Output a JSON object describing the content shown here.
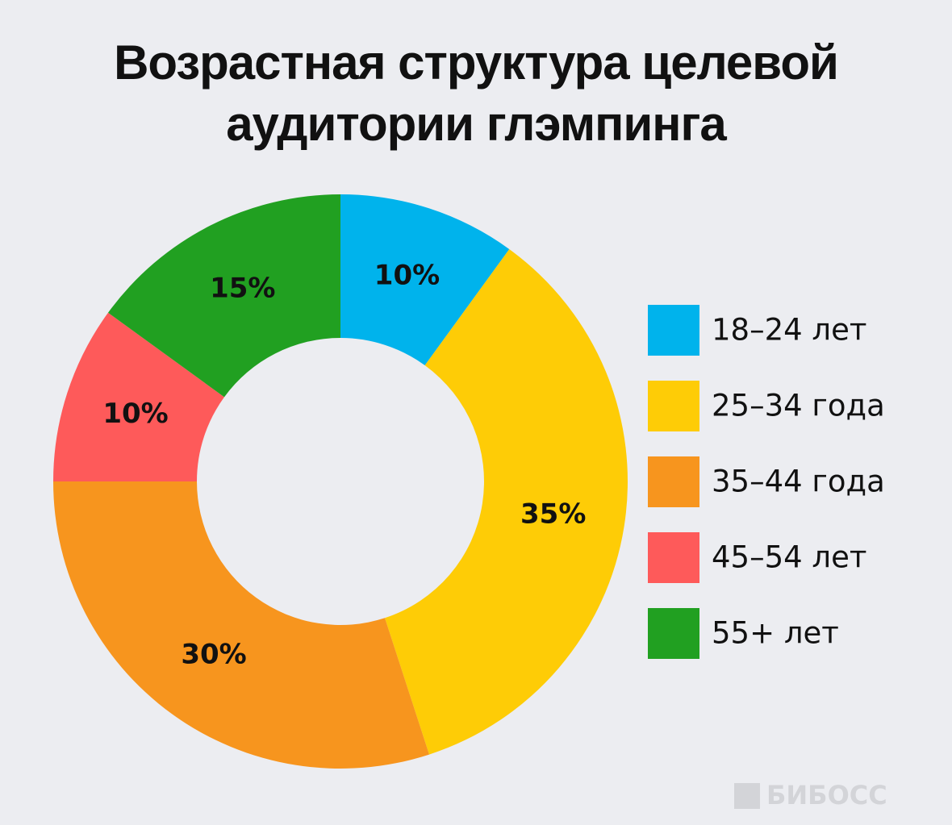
{
  "chart_data": {
    "type": "pie",
    "title": "Возрастная структура целевой аудитории глэмпинга",
    "categories": [
      "18–24 лет",
      "25–34 года",
      "35–44 года",
      "45–54 лет",
      "55+ лет"
    ],
    "values": [
      10,
      35,
      30,
      10,
      15
    ],
    "value_labels": [
      "10%",
      "35%",
      "30%",
      "10%",
      "15%"
    ],
    "colors": [
      "#00b3ec",
      "#fecc06",
      "#f7951e",
      "#fe5a5a",
      "#21a021"
    ],
    "donut": true,
    "watermark": "БИБОСС"
  }
}
